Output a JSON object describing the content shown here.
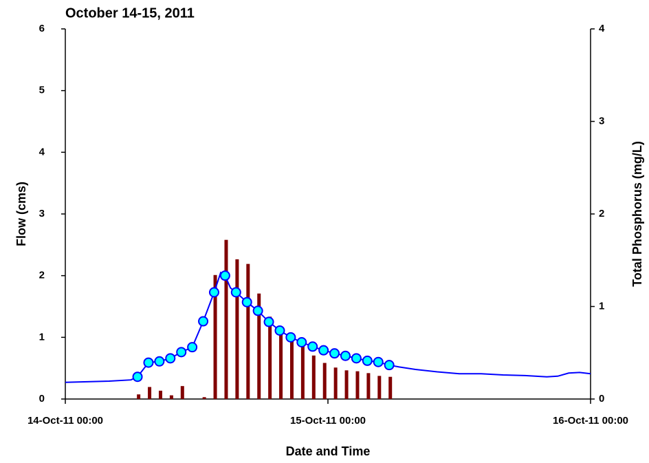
{
  "chart_data": {
    "type": "combo",
    "title": "October 14-15, 2011",
    "xlabel": "Date and Time",
    "ylabel": "Flow (cms)",
    "y2label": "Total Phosphorus (mg/L)",
    "xlim": [
      0,
      48
    ],
    "xticks": [
      {
        "value": 0,
        "label": "14-Oct-11 00:00"
      },
      {
        "value": 24,
        "label": "15-Oct-11 00:00"
      },
      {
        "value": 48,
        "label": "16-Oct-11 00:00"
      }
    ],
    "ylim": [
      0,
      6
    ],
    "yticks": [
      0,
      1,
      2,
      3,
      4,
      5,
      6
    ],
    "y2lim": [
      0,
      4
    ],
    "y2ticks": [
      0,
      1,
      2,
      3,
      4
    ],
    "series": [
      {
        "type": "bar",
        "axis": "y2",
        "color": "#800000",
        "x": [
          6.7,
          7.7,
          8.7,
          9.7,
          10.7,
          12.7,
          13.7,
          14.7,
          15.7,
          16.7,
          17.7,
          18.7,
          19.7,
          20.7,
          21.7,
          22.7,
          23.7,
          24.7,
          25.7,
          26.7,
          27.7,
          28.7,
          29.7
        ],
        "values": [
          0.05,
          0.13,
          0.09,
          0.04,
          0.14,
          0.02,
          1.34,
          1.72,
          1.51,
          1.46,
          1.14,
          0.89,
          0.76,
          0.66,
          0.6,
          0.47,
          0.39,
          0.34,
          0.31,
          0.3,
          0.28,
          0.25,
          0.24
        ]
      },
      {
        "type": "line",
        "axis": "y",
        "color": "#0000ff",
        "x": [
          0,
          2,
          4,
          6,
          6.6,
          7.6,
          8.6,
          9.6,
          10.6,
          11.6,
          12.6,
          13.6,
          14.2,
          14.6,
          15.1,
          15.6,
          16.6,
          17.6,
          18.6,
          19.6,
          20.6,
          21.6,
          22.6,
          23.6,
          24.6,
          25.6,
          26.6,
          27.6,
          28.6,
          29.6,
          30.5,
          32,
          34,
          36,
          38,
          40,
          42,
          44,
          45,
          46,
          47,
          48
        ],
        "values": [
          0.27,
          0.28,
          0.29,
          0.31,
          0.36,
          0.59,
          0.61,
          0.66,
          0.76,
          0.84,
          1.26,
          1.73,
          2.05,
          2.0,
          1.8,
          1.73,
          1.57,
          1.43,
          1.25,
          1.11,
          1.0,
          0.92,
          0.85,
          0.79,
          0.74,
          0.7,
          0.66,
          0.62,
          0.6,
          0.55,
          0.52,
          0.48,
          0.44,
          0.41,
          0.41,
          0.39,
          0.38,
          0.36,
          0.37,
          0.42,
          0.43,
          0.41
        ]
      },
      {
        "type": "scatter",
        "axis": "y",
        "color": "#00ffff",
        "x": [
          6.6,
          7.6,
          8.6,
          9.6,
          10.6,
          11.6,
          12.6,
          13.6,
          14.6,
          15.6,
          16.6,
          17.6,
          18.6,
          19.6,
          20.6,
          21.6,
          22.6,
          23.6,
          24.6,
          25.6,
          26.6,
          27.6,
          28.6,
          29.6
        ],
        "values": [
          0.36,
          0.59,
          0.61,
          0.66,
          0.76,
          0.84,
          1.26,
          1.73,
          2.0,
          1.73,
          1.57,
          1.43,
          1.25,
          1.11,
          1.0,
          0.92,
          0.85,
          0.79,
          0.74,
          0.7,
          0.66,
          0.62,
          0.6,
          0.55
        ]
      }
    ]
  }
}
